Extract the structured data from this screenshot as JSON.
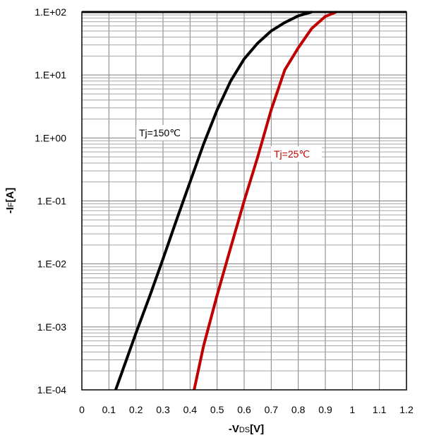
{
  "chart_data": {
    "type": "line",
    "title": "",
    "xlabel": {
      "prefix": "-V",
      "sub": "DS",
      "suffix": "[V]"
    },
    "ylabel": {
      "prefix": "-I",
      "sub": "F",
      "suffix": "[A]"
    },
    "xlim": [
      0,
      1.2
    ],
    "ylim": [
      0.0001,
      100
    ],
    "yscale": "log",
    "grid": true,
    "x_ticks": [
      0,
      0.1,
      0.2,
      0.3,
      0.4,
      0.5,
      0.6,
      0.7,
      0.8,
      0.9,
      1,
      1.1,
      1.2
    ],
    "x_tick_labels": [
      "0",
      "0.1",
      "0.2",
      "0.3",
      "0.4",
      "0.5",
      "0.6",
      "0.7",
      "0.8",
      "0.9",
      "1",
      "1.1",
      "1.2"
    ],
    "y_ticks": [
      100,
      10,
      1,
      0.1,
      0.01,
      0.001,
      0.0001
    ],
    "y_tick_labels": [
      "1.E+02",
      "1.E+01",
      "1.E+00",
      "1.E-01",
      "1.E-02",
      "1.E-03",
      "1.E-04"
    ],
    "series": [
      {
        "name": "Tj=150℃",
        "color": "#000000",
        "points": [
          [
            0.125,
            0.0001
          ],
          [
            0.2,
            0.0008
          ],
          [
            0.25,
            0.003
          ],
          [
            0.3,
            0.012
          ],
          [
            0.35,
            0.05
          ],
          [
            0.4,
            0.2
          ],
          [
            0.45,
            0.8
          ],
          [
            0.5,
            2.8
          ],
          [
            0.55,
            8
          ],
          [
            0.6,
            18
          ],
          [
            0.65,
            32
          ],
          [
            0.7,
            50
          ],
          [
            0.75,
            68
          ],
          [
            0.8,
            87
          ],
          [
            0.85,
            100
          ]
        ]
      },
      {
        "name": "Tj=25℃",
        "color": "#c00000",
        "points": [
          [
            0.415,
            0.0001
          ],
          [
            0.45,
            0.0005
          ],
          [
            0.5,
            0.0032
          ],
          [
            0.55,
            0.018
          ],
          [
            0.6,
            0.1
          ],
          [
            0.65,
            0.5
          ],
          [
            0.7,
            2.8
          ],
          [
            0.75,
            12
          ],
          [
            0.8,
            27
          ],
          [
            0.85,
            55
          ],
          [
            0.9,
            85
          ],
          [
            0.94,
            100
          ]
        ]
      }
    ]
  }
}
